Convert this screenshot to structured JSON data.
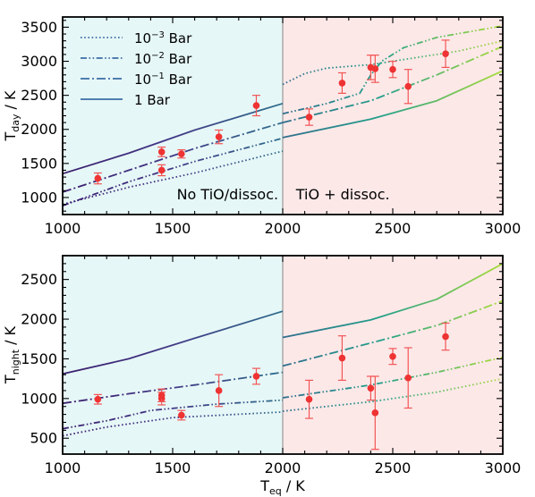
{
  "chart_data": [
    {
      "type": "line",
      "panel": "top",
      "ylabel": "T",
      "ylabel_sub": "day",
      "ylabel_unit": "/ K",
      "xlim": [
        1000,
        3000
      ],
      "ylim": [
        750,
        3650
      ],
      "xticks": [
        1000,
        1500,
        2000,
        2500,
        3000
      ],
      "yticks": [
        1000,
        1500,
        2000,
        2500,
        3000,
        3500
      ],
      "regions": [
        {
          "label": "No TiO/dissoc.",
          "x": [
            1000,
            2000
          ],
          "color": "#e6f7f7"
        },
        {
          "label": "TiO + dissoc.",
          "x": [
            2000,
            3000
          ],
          "color": "#fde8e8"
        }
      ],
      "legend": {
        "placement": "top-left",
        "entries": [
          {
            "base": "10",
            "exp": "−3",
            "unit": "Bar",
            "style": "dotted"
          },
          {
            "base": "10",
            "exp": "−2",
            "unit": "Bar",
            "style": "dashdotdot"
          },
          {
            "base": "10",
            "exp": "−1",
            "unit": "Bar",
            "style": "dashdot"
          },
          {
            "base": "1",
            "exp": "",
            "unit": "Bar",
            "style": "solid"
          }
        ]
      },
      "series": [
        {
          "style": "dotted",
          "segments": [
            [
              [
                1000,
                900
              ],
              [
                1300,
                1150
              ],
              [
                1600,
                1360
              ],
              [
                2000,
                1680
              ]
            ],
            [
              [
                2000,
                2660
              ],
              [
                2100,
                2820
              ],
              [
                2200,
                2900
              ],
              [
                2400,
                2950
              ],
              [
                2600,
                3050
              ],
              [
                2800,
                3150
              ],
              [
                3000,
                3300
              ]
            ]
          ]
        },
        {
          "style": "dashdotdot",
          "segments": [
            [
              [
                1000,
                880
              ],
              [
                1300,
                1230
              ],
              [
                1600,
                1530
              ],
              [
                2000,
                1870
              ]
            ],
            [
              [
                2000,
                2230
              ],
              [
                2200,
                2380
              ],
              [
                2350,
                2530
              ],
              [
                2400,
                2800
              ],
              [
                2450,
                3000
              ],
              [
                2550,
                3200
              ],
              [
                2700,
                3350
              ],
              [
                3000,
                3520
              ]
            ]
          ]
        },
        {
          "style": "dashdot",
          "segments": [
            [
              [
                1000,
                1080
              ],
              [
                1300,
                1400
              ],
              [
                1600,
                1720
              ],
              [
                2000,
                2100
              ]
            ],
            [
              [
                2000,
                2100
              ],
              [
                2400,
                2420
              ],
              [
                2700,
                2800
              ],
              [
                3000,
                3220
              ]
            ]
          ]
        },
        {
          "style": "solid",
          "segments": [
            [
              [
                1000,
                1350
              ],
              [
                1300,
                1650
              ],
              [
                1600,
                1990
              ],
              [
                2000,
                2380
              ]
            ],
            [
              [
                2000,
                1880
              ],
              [
                2400,
                2150
              ],
              [
                2700,
                2420
              ],
              [
                3000,
                2860
              ]
            ]
          ]
        }
      ],
      "points": [
        {
          "x": 1160,
          "y": 1280,
          "err": 80
        },
        {
          "x": 1450,
          "y": 1670,
          "err": 70
        },
        {
          "x": 1450,
          "y": 1400,
          "err": 80
        },
        {
          "x": 1540,
          "y": 1640,
          "err": 60
        },
        {
          "x": 1710,
          "y": 1890,
          "err": 100
        },
        {
          "x": 1880,
          "y": 2350,
          "err": 150
        },
        {
          "x": 2120,
          "y": 2180,
          "err": 120
        },
        {
          "x": 2270,
          "y": 2680,
          "err": 150
        },
        {
          "x": 2400,
          "y": 2910,
          "err": 180
        },
        {
          "x": 2420,
          "y": 2890,
          "err": 200
        },
        {
          "x": 2500,
          "y": 2880,
          "err": 120
        },
        {
          "x": 2570,
          "y": 2630,
          "err": 250
        },
        {
          "x": 2740,
          "y": 3110,
          "err": 200
        }
      ]
    },
    {
      "type": "line",
      "panel": "bottom",
      "xlabel": "T",
      "xlabel_sub": "eq",
      "xlabel_unit": "/ K",
      "ylabel": "T",
      "ylabel_sub": "night",
      "ylabel_unit": "/ K",
      "xlim": [
        1000,
        3000
      ],
      "ylim": [
        300,
        2800
      ],
      "xticks": [
        1000,
        1500,
        2000,
        2500,
        3000
      ],
      "yticks": [
        500,
        1000,
        1500,
        2000,
        2500
      ],
      "series": [
        {
          "style": "dotted",
          "segments": [
            [
              [
                1000,
                530
              ],
              [
                1200,
                640
              ],
              [
                1500,
                760
              ],
              [
                2000,
                830
              ]
            ],
            [
              [
                2000,
                840
              ],
              [
                2400,
                960
              ],
              [
                2700,
                1080
              ],
              [
                3000,
                1250
              ]
            ]
          ]
        },
        {
          "style": "dashdotdot",
          "segments": [
            [
              [
                1000,
                620
              ],
              [
                1200,
                720
              ],
              [
                1400,
                850
              ],
              [
                1700,
                930
              ],
              [
                2000,
                980
              ]
            ],
            [
              [
                2000,
                1010
              ],
              [
                2400,
                1170
              ],
              [
                2700,
                1330
              ],
              [
                3000,
                1520
              ]
            ]
          ]
        },
        {
          "style": "dashdot",
          "segments": [
            [
              [
                1000,
                940
              ],
              [
                1300,
                1060
              ],
              [
                1600,
                1170
              ],
              [
                2000,
                1330
              ]
            ],
            [
              [
                2000,
                1410
              ],
              [
                2400,
                1700
              ],
              [
                2700,
                1920
              ],
              [
                3000,
                2230
              ]
            ]
          ]
        },
        {
          "style": "solid",
          "segments": [
            [
              [
                1000,
                1310
              ],
              [
                1300,
                1500
              ],
              [
                1600,
                1760
              ],
              [
                2000,
                2100
              ]
            ],
            [
              [
                2000,
                1770
              ],
              [
                2400,
                1990
              ],
              [
                2700,
                2250
              ],
              [
                3000,
                2700
              ]
            ]
          ]
        }
      ],
      "points": [
        {
          "x": 1160,
          "y": 990,
          "err": 60
        },
        {
          "x": 1450,
          "y": 1000,
          "err": 80
        },
        {
          "x": 1450,
          "y": 1040,
          "err": 80
        },
        {
          "x": 1540,
          "y": 790,
          "err": 60
        },
        {
          "x": 1710,
          "y": 1100,
          "err": 200
        },
        {
          "x": 1880,
          "y": 1280,
          "err": 100
        },
        {
          "x": 2120,
          "y": 990,
          "err": 240
        },
        {
          "x": 2270,
          "y": 1510,
          "err": 280
        },
        {
          "x": 2400,
          "y": 1130,
          "err": 150
        },
        {
          "x": 2420,
          "y": 820,
          "err": 460
        },
        {
          "x": 2500,
          "y": 1530,
          "err": 100
        },
        {
          "x": 2570,
          "y": 1260,
          "err": 380
        },
        {
          "x": 2740,
          "y": 1780,
          "err": 170
        }
      ]
    }
  ]
}
